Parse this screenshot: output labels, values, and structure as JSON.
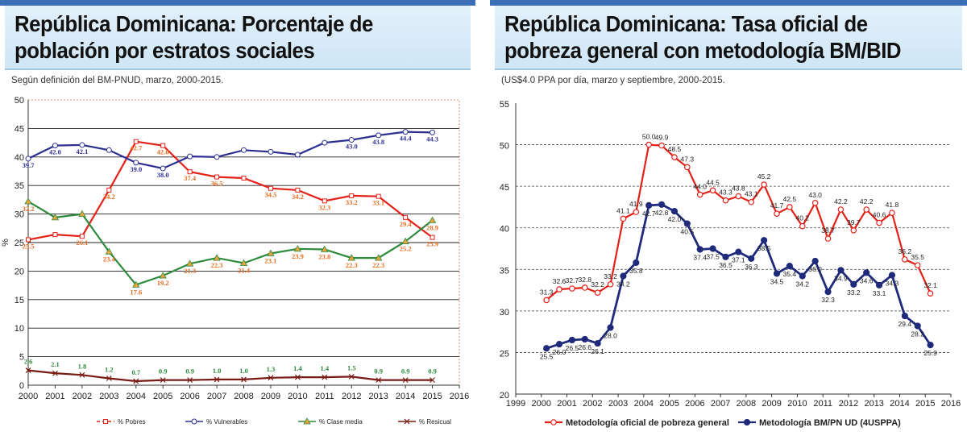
{
  "panels": [
    {
      "title": "República Dominicana: Porcentaje de población por estratos sociales",
      "subtitle": "Según definición del BM-PNUD, marzo, 2000-2015."
    },
    {
      "title": "República Dominicana: Tasa oficial de pobreza general con metodología BM/BID",
      "subtitle": "(US$4.0 PPA por día, marzo y septiembre, 2000-2015."
    }
  ],
  "chart_data": [
    {
      "type": "line",
      "title": "República Dominicana: Porcentaje de población por estratos sociales",
      "subtitle": "Según definición del BM-PNUD, marzo, 2000-2015.",
      "xlabel": "",
      "ylabel": "%",
      "xlim": [
        2000,
        2016
      ],
      "ylim": [
        0,
        50
      ],
      "x_ticks": [
        2000,
        2001,
        2002,
        2003,
        2004,
        2005,
        2006,
        2007,
        2008,
        2009,
        2010,
        2011,
        2012,
        2013,
        2014,
        2015,
        2016
      ],
      "y_ticks": [
        0,
        5,
        10,
        15,
        20,
        25,
        30,
        35,
        40,
        45,
        50
      ],
      "grid": "horizontal",
      "legend_position": "bottom",
      "x": [
        2000,
        2001,
        2002,
        2003,
        2004,
        2005,
        2006,
        2007,
        2008,
        2009,
        2010,
        2011,
        2012,
        2013,
        2014,
        2015
      ],
      "series": [
        {
          "name": "% Pobres",
          "color": "#e32119",
          "marker": "square",
          "values": [
            25.5,
            26.4,
            26.1,
            34.2,
            42.7,
            42.0,
            37.4,
            36.5,
            36.3,
            34.5,
            34.2,
            32.3,
            33.2,
            33.1,
            29.4,
            25.9
          ],
          "labels": [
            "25.5",
            "",
            "26.1",
            "34.2",
            "42.7",
            "42.0",
            "37.4",
            "36.5",
            "",
            "34.5",
            "34.2",
            "32.3",
            "33.2",
            "33.1",
            "29.4",
            "25.9"
          ]
        },
        {
          "name": "% Vulnerables",
          "color": "#2e3192",
          "marker": "circle",
          "values": [
            39.7,
            42.0,
            42.1,
            41.2,
            39.0,
            38.0,
            40.1,
            40.0,
            41.2,
            40.9,
            40.4,
            42.5,
            43.0,
            43.8,
            44.4,
            44.3
          ],
          "labels": [
            "39.7",
            "42.0",
            "42.1",
            "",
            "39.0",
            "38.0",
            "",
            "",
            "",
            "",
            "",
            "",
            "43.0",
            "43.8",
            "44.4",
            "44.3"
          ]
        },
        {
          "name": "% Clase media",
          "color": "#2e8b3d",
          "marker": "triangle",
          "values": [
            32.2,
            29.4,
            30.0,
            23.4,
            17.6,
            19.2,
            21.3,
            22.3,
            21.4,
            23.1,
            23.9,
            23.8,
            22.3,
            22.3,
            25.2,
            28.9
          ],
          "labels": [
            "32.2",
            "",
            "",
            "23.4",
            "17.6",
            "19.2",
            "21.3",
            "22.3",
            "21.4",
            "23.1",
            "23.9",
            "23.8",
            "22.3",
            "22.3",
            "25.2",
            "28.9"
          ]
        },
        {
          "name": "% Resicual",
          "color": "#7a1a14",
          "marker": "x",
          "values": [
            2.6,
            2.1,
            1.8,
            1.2,
            0.7,
            0.9,
            0.9,
            1.0,
            1.0,
            1.3,
            1.4,
            1.4,
            1.5,
            0.9,
            0.9,
            0.9
          ],
          "labels": [
            "2.6",
            "2.1",
            "1.8",
            "1.2",
            "0.7",
            "0.9",
            "0.9",
            "1.0",
            "1.0",
            "1.3",
            "1.4",
            "1.4",
            "1.5",
            "0.9",
            "0.9",
            "0.9"
          ]
        }
      ]
    },
    {
      "type": "line",
      "title": "República Dominicana: Tasa oficial de pobreza general con metodología BM/BID",
      "subtitle": "(US$4.0 PPA por día, marzo y septiembre, 2000-2015.",
      "xlabel": "",
      "ylabel": "",
      "xlim": [
        1999,
        2016
      ],
      "ylim": [
        20,
        55
      ],
      "x_ticks": [
        1999,
        2000,
        2001,
        2002,
        2003,
        2004,
        2005,
        2006,
        2007,
        2008,
        2009,
        2010,
        2011,
        2012,
        2013,
        2014,
        2015,
        2016
      ],
      "y_ticks": [
        20,
        25,
        30,
        35,
        40,
        45,
        50,
        55
      ],
      "grid": "horizontal",
      "legend_position": "bottom",
      "x": [
        2000.2,
        2000.7,
        2001.2,
        2001.7,
        2002.2,
        2002.7,
        2003.2,
        2003.7,
        2004.2,
        2004.7,
        2005.2,
        2005.7,
        2006.2,
        2006.7,
        2007.2,
        2007.7,
        2008.2,
        2008.7,
        2009.2,
        2009.7,
        2010.2,
        2010.7,
        2011.2,
        2011.7,
        2012.2,
        2012.7,
        2013.2,
        2013.7,
        2014.2,
        2014.7,
        2015.2
      ],
      "series": [
        {
          "name": "Metodología oficial de pobreza general",
          "color": "#e32119",
          "marker": "hollow-circle",
          "values": [
            31.3,
            32.6,
            32.7,
            32.8,
            32.2,
            33.2,
            41.1,
            41.9,
            50.0,
            49.9,
            48.5,
            47.3,
            44.0,
            44.5,
            43.3,
            43.8,
            43.1,
            45.2,
            41.7,
            42.5,
            40.2,
            43.0,
            38.7,
            42.2,
            39.7,
            42.2,
            40.6,
            41.8,
            36.2,
            35.5,
            32.1
          ]
        },
        {
          "name": "Metodología BM/PN UD (4USPPA)",
          "color": "#1f2a7a",
          "marker": "filled-circle",
          "values": [
            25.5,
            26.0,
            26.5,
            26.6,
            26.1,
            28.0,
            34.2,
            35.8,
            42.7,
            42.8,
            42.0,
            40.5,
            37.4,
            37.5,
            36.5,
            37.1,
            36.3,
            38.5,
            34.5,
            35.4,
            34.2,
            36.0,
            32.3,
            34.9,
            33.2,
            34.6,
            33.1,
            34.3,
            29.4,
            28.2,
            25.9
          ]
        }
      ]
    }
  ]
}
